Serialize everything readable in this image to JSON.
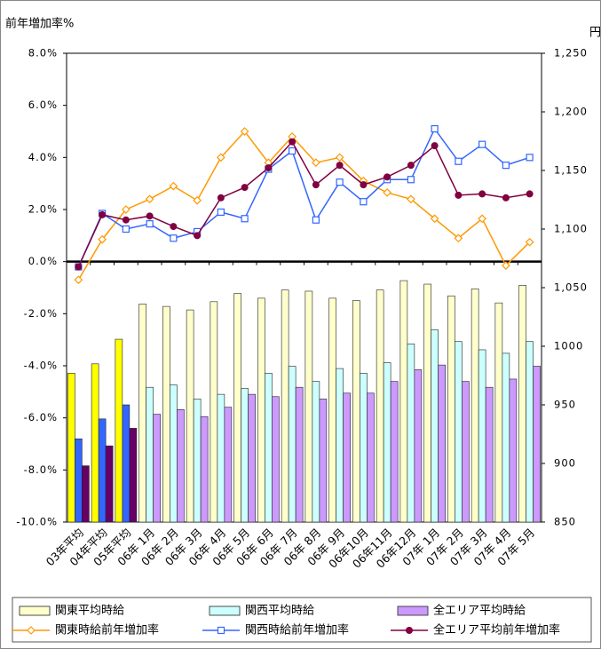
{
  "chart_data": {
    "type": "combo",
    "y_label": "前年増加率%",
    "y2_label": "円",
    "categories": [
      "03年平均",
      "04年平均",
      "05年平均",
      "06年 1月",
      "06年 2月",
      "06年 3月",
      "06年 4月",
      "06年 5月",
      "06年 6月",
      "06年 7月",
      "06年 8月",
      "06年 9月",
      "06年10月",
      "06年11月",
      "06年12月",
      "07年 1月",
      "07年 2月",
      "07年 3月",
      "07年 4月",
      "07年 5月"
    ],
    "ylim": [
      -10,
      8
    ],
    "yticks": [
      {
        "value": 8,
        "label": "8.0%"
      },
      {
        "value": 6,
        "label": "6.0%"
      },
      {
        "value": 4,
        "label": "4.0%"
      },
      {
        "value": 2,
        "label": "2.0%"
      },
      {
        "value": 0,
        "label": "0.0%"
      },
      {
        "value": -2,
        "label": "-2.0%"
      },
      {
        "value": -4,
        "label": "-4.0%"
      },
      {
        "value": -6,
        "label": "-6.0%"
      },
      {
        "value": -8,
        "label": "-8.0%"
      },
      {
        "value": -10,
        "label": "-10.0%"
      }
    ],
    "y2lim": [
      850,
      1250
    ],
    "y2ticks": [
      {
        "value": 1250,
        "label": "1,250"
      },
      {
        "value": 1200,
        "label": "1,200"
      },
      {
        "value": 1150,
        "label": "1,150"
      },
      {
        "value": 1100,
        "label": "1,100"
      },
      {
        "value": 1050,
        "label": "1,050"
      },
      1000,
      950,
      900,
      850
    ],
    "series": [
      {
        "name": "関東平均時給",
        "type": "bar",
        "axis": "y2",
        "color": "#ffffcc",
        "highlight_color": "#ffff00",
        "highlight_count": 3,
        "values": [
          977,
          985,
          1006,
          1036,
          1034,
          1031,
          1038,
          1045,
          1041,
          1048,
          1047,
          1041,
          1039,
          1048,
          1056,
          1053,
          1043,
          1049,
          1037,
          1052
        ]
      },
      {
        "name": "関西平均時給",
        "type": "bar",
        "axis": "y2",
        "color": "#ccffff",
        "highlight_color": "#3366ff",
        "highlight_count": 3,
        "values": [
          921,
          938,
          950,
          965,
          967,
          955,
          959,
          964,
          977,
          983,
          970,
          981,
          977,
          986,
          1002,
          1014,
          1004,
          997,
          994,
          1004
        ]
      },
      {
        "name": "全エリア平均時給",
        "type": "bar",
        "axis": "y2",
        "color": "#cc99ff",
        "highlight_color": "#660066",
        "highlight_count": 3,
        "values": [
          898,
          915,
          930,
          942,
          946,
          940,
          948,
          959,
          957,
          965,
          955,
          960,
          960,
          970,
          980,
          984,
          970,
          965,
          972,
          983
        ]
      },
      {
        "name": "関東時給前年増加率",
        "type": "line",
        "color": "#ff9900",
        "marker": "diamond",
        "values": [
          -0.7,
          0.85,
          2.0,
          2.4,
          2.9,
          2.35,
          4.0,
          5.0,
          3.8,
          4.8,
          3.8,
          4.0,
          3.1,
          2.65,
          2.4,
          1.65,
          0.9,
          1.65,
          -0.15,
          0.75
        ]
      },
      {
        "name": "関西時給前年増加率",
        "type": "line",
        "color": "#3366ff",
        "marker": "square",
        "values": [
          -0.2,
          1.85,
          1.25,
          1.45,
          0.9,
          1.15,
          1.9,
          1.65,
          3.55,
          4.25,
          1.6,
          3.05,
          2.3,
          3.15,
          3.15,
          5.1,
          3.85,
          4.5,
          3.7,
          4.0
        ]
      },
      {
        "name": "全エリア平均前年増加率",
        "type": "line",
        "color": "#800040",
        "marker": "circle",
        "values": [
          -0.2,
          1.8,
          1.6,
          1.75,
          1.35,
          1.0,
          2.45,
          2.85,
          3.6,
          4.6,
          2.95,
          3.7,
          2.95,
          3.25,
          3.7,
          4.45,
          2.55,
          2.6,
          2.45,
          2.6
        ]
      }
    ]
  }
}
